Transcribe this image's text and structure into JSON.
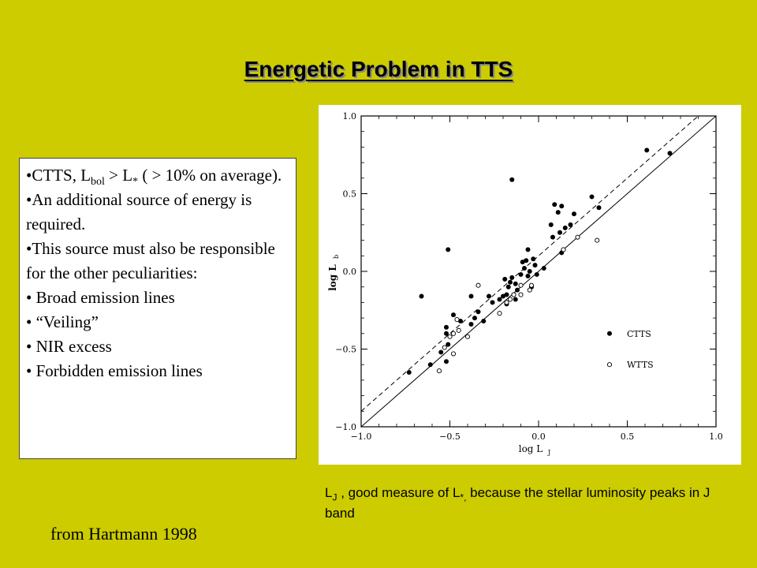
{
  "slide": {
    "title": "Energetic Problem in TTS",
    "bullets": {
      "b1_pre": "•CTTS, L",
      "b1_sub_bol": "bol",
      "b1_mid": " > L",
      "b1_sub_star": "*",
      "b1_post": " ( > 10% on average).",
      "b2": "•An additional source of energy is required.",
      "b3": "•This source must also be responsible for the other peculiarities:",
      "b4": "•  Broad emission lines",
      "b5": "•  “Veiling”",
      "b6": "• NIR excess",
      "b7": "• Forbidden emission lines"
    },
    "caption": {
      "l_pre": "L",
      "l_sub_j": "J",
      "l_mid": " , good measure of L",
      "l_sub_star": "*,",
      "l_post": " because the stellar luminosity peaks in J band"
    },
    "source": "from Hartmann 1998"
  },
  "chart_data": {
    "type": "scatter",
    "xlabel_main": "log L",
    "xlabel_sub": "J",
    "ylabel_main": "log L",
    "ylabel_sub": "b",
    "xlim": [
      -1.0,
      1.0
    ],
    "ylim": [
      -1.0,
      1.0
    ],
    "xticks": [
      "−1.0",
      "−0.5",
      "0.0",
      "0.5",
      "1.0"
    ],
    "yticks": [
      "1.0",
      "0.5",
      "0.0",
      "−0.5",
      "−1.0"
    ],
    "xtick_values": [
      -1.0,
      -0.5,
      0.0,
      0.5,
      1.0
    ],
    "ytick_values": [
      1.0,
      0.5,
      0.0,
      -0.5,
      -1.0
    ],
    "reference_lines": [
      {
        "style": "solid",
        "slope": 1,
        "intercept": 0
      },
      {
        "style": "dashed",
        "slope": 1,
        "intercept": 0.1
      }
    ],
    "legend": {
      "position": "lower-right",
      "entries": [
        "CTTS",
        "WTTS"
      ]
    },
    "series": [
      {
        "name": "CTTS",
        "marker": "filled",
        "points": [
          [
            -0.73,
            -0.65
          ],
          [
            -0.66,
            -0.16
          ],
          [
            -0.61,
            -0.6
          ],
          [
            -0.55,
            -0.52
          ],
          [
            -0.52,
            -0.36
          ],
          [
            -0.52,
            -0.4
          ],
          [
            -0.51,
            -0.47
          ],
          [
            -0.52,
            -0.58
          ],
          [
            -0.51,
            0.14
          ],
          [
            -0.48,
            -0.28
          ],
          [
            -0.44,
            -0.32
          ],
          [
            -0.38,
            -0.34
          ],
          [
            -0.38,
            -0.16
          ],
          [
            -0.36,
            -0.3
          ],
          [
            -0.34,
            -0.26
          ],
          [
            -0.31,
            -0.32
          ],
          [
            -0.28,
            -0.16
          ],
          [
            -0.26,
            -0.2
          ],
          [
            -0.22,
            -0.18
          ],
          [
            -0.2,
            -0.16
          ],
          [
            -0.19,
            -0.05
          ],
          [
            -0.18,
            -0.15
          ],
          [
            -0.18,
            -0.21
          ],
          [
            -0.17,
            -0.1
          ],
          [
            -0.16,
            -0.07
          ],
          [
            -0.15,
            0.59
          ],
          [
            -0.15,
            -0.04
          ],
          [
            -0.14,
            -0.15
          ],
          [
            -0.13,
            -0.08
          ],
          [
            -0.13,
            -0.18
          ],
          [
            -0.12,
            -0.12
          ],
          [
            -0.1,
            -0.02
          ],
          [
            -0.09,
            0.06
          ],
          [
            -0.08,
            0.02
          ],
          [
            -0.07,
            0.07
          ],
          [
            -0.06,
            0.14
          ],
          [
            -0.06,
            -0.03
          ],
          [
            -0.05,
            0.0
          ],
          [
            -0.04,
            -0.1
          ],
          [
            -0.03,
            0.08
          ],
          [
            -0.02,
            0.04
          ],
          [
            -0.01,
            -0.02
          ],
          [
            0.03,
            0.02
          ],
          [
            0.07,
            0.3
          ],
          [
            0.08,
            0.22
          ],
          [
            0.09,
            0.43
          ],
          [
            0.11,
            0.38
          ],
          [
            0.12,
            0.25
          ],
          [
            0.13,
            0.42
          ],
          [
            0.13,
            0.12
          ],
          [
            0.15,
            0.28
          ],
          [
            0.18,
            0.3
          ],
          [
            0.2,
            0.37
          ],
          [
            0.3,
            0.48
          ],
          [
            0.34,
            0.41
          ],
          [
            0.61,
            0.78
          ],
          [
            0.74,
            0.76
          ]
        ]
      },
      {
        "name": "WTTS",
        "marker": "open",
        "points": [
          [
            -0.56,
            -0.64
          ],
          [
            -0.53,
            -0.49
          ],
          [
            -0.5,
            -0.42
          ],
          [
            -0.48,
            -0.53
          ],
          [
            -0.48,
            -0.4
          ],
          [
            -0.46,
            -0.31
          ],
          [
            -0.45,
            -0.38
          ],
          [
            -0.4,
            -0.42
          ],
          [
            -0.34,
            -0.09
          ],
          [
            -0.22,
            -0.27
          ],
          [
            -0.18,
            -0.2
          ],
          [
            -0.16,
            -0.18
          ],
          [
            -0.14,
            -0.15
          ],
          [
            -0.1,
            -0.09
          ],
          [
            -0.1,
            -0.15
          ],
          [
            -0.05,
            -0.12
          ],
          [
            -0.04,
            -0.09
          ],
          [
            0.14,
            0.14
          ],
          [
            0.22,
            0.22
          ],
          [
            0.33,
            0.2
          ]
        ]
      }
    ]
  }
}
